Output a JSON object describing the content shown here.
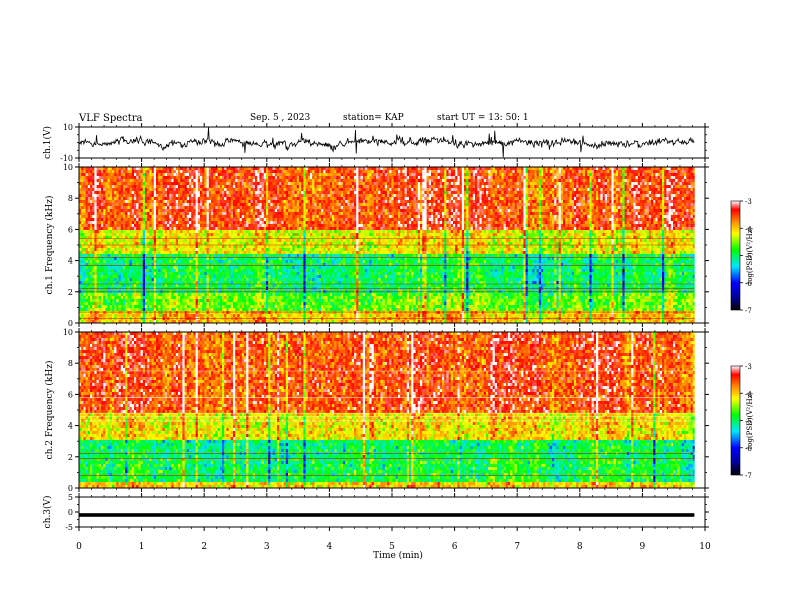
{
  "header": {
    "title": "VLF Spectra",
    "date": "Sep. 5  , 2023",
    "station": "station= KAP",
    "start": "start  UT  =   13: 50: 1"
  },
  "chart_data": [
    {
      "type": "line",
      "panel": "ch1-waveform",
      "ylabel": "ch.1(V)",
      "ylim": [
        -10,
        10
      ],
      "yticks": [
        "10",
        "-10"
      ],
      "xlim": [
        0,
        10
      ],
      "series": [
        {
          "values": "noisy waveform, mostly between -5 and 5 V"
        }
      ]
    },
    {
      "type": "heatmap",
      "panel": "ch1-spectrogram",
      "ylabel": "ch.1  Frequency  (kHz)",
      "ylim": [
        0,
        10
      ],
      "yticks": [
        "0",
        "2",
        "4",
        "6",
        "8",
        "10"
      ],
      "xlim": [
        0,
        9.83
      ],
      "colorbar": {
        "label": "log(PSD)(V²/Hz)",
        "range": [
          -7,
          -3
        ],
        "ticks": [
          "-3",
          "-4",
          "-5",
          "-6",
          "-7"
        ]
      },
      "profile": [
        {
          "freq": [
            0,
            0.8
          ],
          "level": -4.0
        },
        {
          "freq": [
            0.8,
            2.0
          ],
          "level": -4.6
        },
        {
          "freq": [
            2.0,
            4.5
          ],
          "level": -5.0
        },
        {
          "freq": [
            4.5,
            6.0
          ],
          "level": -4.2
        },
        {
          "freq": [
            6.0,
            10.0
          ],
          "level": -3.5
        }
      ]
    },
    {
      "type": "heatmap",
      "panel": "ch2-spectrogram",
      "ylabel": "ch.2  Frequency  (kHz)",
      "ylim": [
        0,
        10
      ],
      "yticks": [
        "0",
        "2",
        "4",
        "6",
        "8",
        "10"
      ],
      "xlim": [
        0,
        9.83
      ],
      "colorbar": {
        "label": "log(PSD)(V²/Hz)",
        "range": [
          -7,
          -3
        ],
        "ticks": [
          "-3",
          "-4",
          "-5",
          "-6",
          "-7"
        ]
      },
      "profile": [
        {
          "freq": [
            0,
            0.5
          ],
          "level": -4.0
        },
        {
          "freq": [
            0.5,
            2.0
          ],
          "level": -4.9
        },
        {
          "freq": [
            2.0,
            3.2
          ],
          "level": -5.0
        },
        {
          "freq": [
            3.2,
            5.0
          ],
          "level": -4.1
        },
        {
          "freq": [
            5.0,
            10.0
          ],
          "level": -3.5
        }
      ]
    },
    {
      "type": "line",
      "panel": "ch3-waveform",
      "ylabel": "ch.3(V)",
      "ylim": [
        -5,
        5
      ],
      "yticks": [
        "5",
        "0",
        "-5"
      ],
      "xlim": [
        0,
        10
      ],
      "series": [
        {
          "values": "thick band centered near -1 V from 0 to 9.83 min"
        }
      ]
    }
  ],
  "xaxis": {
    "label": "Time  (min)",
    "ticks": [
      "0",
      "1",
      "2",
      "3",
      "4",
      "5",
      "6",
      "7",
      "8",
      "9",
      "10"
    ]
  },
  "colors": {
    "trace": "#000000",
    "colormap": [
      "#000000",
      "#0000ff",
      "#00e5ff",
      "#00ff00",
      "#ffff00",
      "#ff8000",
      "#ff0000",
      "#ffffff"
    ]
  }
}
